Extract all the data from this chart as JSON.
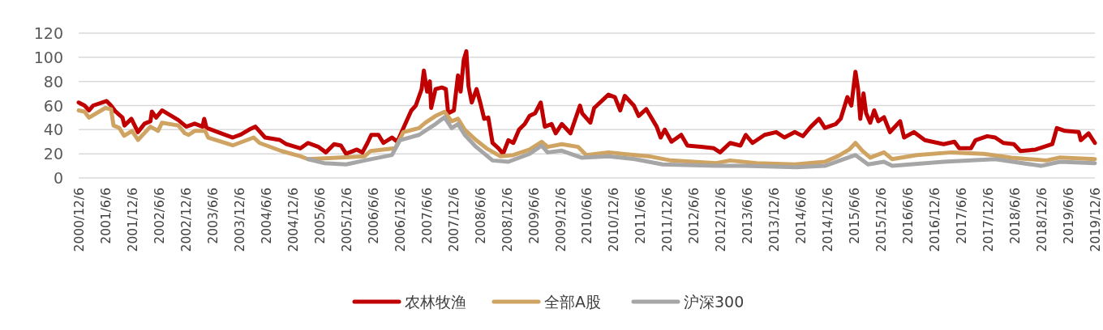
{
  "chart_data": {
    "type": "line",
    "grid": "y",
    "legend": "bottom",
    "ylim": [
      0,
      120
    ],
    "yticks": [
      0,
      20,
      40,
      60,
      80,
      100,
      120
    ],
    "xlim": [
      "2000-12-06",
      "2019-12-06"
    ],
    "xticks": [
      {
        "value": "2000-12-06",
        "label": "2000/12/6"
      },
      {
        "value": "2001-06-06",
        "label": "2001/6/6"
      },
      {
        "value": "2001-12-06",
        "label": "2001/12/6"
      },
      {
        "value": "2002-06-06",
        "label": "2002/6/6"
      },
      {
        "value": "2002-12-06",
        "label": "2002/12/6"
      },
      {
        "value": "2003-06-06",
        "label": "2003/6/6"
      },
      {
        "value": "2003-12-06",
        "label": "2003/12/6"
      },
      {
        "value": "2004-06-06",
        "label": "2004/6/6"
      },
      {
        "value": "2004-12-06",
        "label": "2004/12/6"
      },
      {
        "value": "2005-06-06",
        "label": "2005/6/6"
      },
      {
        "value": "2005-12-06",
        "label": "2005/12/6"
      },
      {
        "value": "2006-06-06",
        "label": "2006/6/6"
      },
      {
        "value": "2006-12-06",
        "label": "2006/12/6"
      },
      {
        "value": "2007-06-06",
        "label": "2007/6/6"
      },
      {
        "value": "2007-12-06",
        "label": "2007/12/6"
      },
      {
        "value": "2008-06-06",
        "label": "2008/6/6"
      },
      {
        "value": "2008-12-06",
        "label": "2008/12/6"
      },
      {
        "value": "2009-06-06",
        "label": "2009/6/6"
      },
      {
        "value": "2009-12-06",
        "label": "2009/12/6"
      },
      {
        "value": "2010-06-06",
        "label": "2010/6/6"
      },
      {
        "value": "2010-12-06",
        "label": "2010/12/6"
      },
      {
        "value": "2011-06-06",
        "label": "2011/6/6"
      },
      {
        "value": "2011-12-06",
        "label": "2011/12/6"
      },
      {
        "value": "2012-06-06",
        "label": "2012/6/6"
      },
      {
        "value": "2012-12-06",
        "label": "2012/12/6"
      },
      {
        "value": "2013-06-06",
        "label": "2013/6/6"
      },
      {
        "value": "2013-12-06",
        "label": "2013/12/6"
      },
      {
        "value": "2014-06-06",
        "label": "2014/6/6"
      },
      {
        "value": "2014-12-06",
        "label": "2014/12/6"
      },
      {
        "value": "2015-06-06",
        "label": "2015/6/6"
      },
      {
        "value": "2015-12-06",
        "label": "2015/12/6"
      },
      {
        "value": "2016-06-06",
        "label": "2016/6/6"
      },
      {
        "value": "2016-12-06",
        "label": "2016/12/6"
      },
      {
        "value": "2017-06-06",
        "label": "2017/6/6"
      },
      {
        "value": "2017-12-06",
        "label": "2017/12/6"
      },
      {
        "value": "2018-06-06",
        "label": "2018/6/6"
      },
      {
        "value": "2018-12-06",
        "label": "2018/12/6"
      },
      {
        "value": "2019-06-06",
        "label": "2019/6/6"
      },
      {
        "value": "2019-12-06",
        "label": "2019/12/6"
      }
    ],
    "series": [
      {
        "name": "农林牧渔",
        "color": "#c00000",
        "x": [
          "2000-12-06",
          "2001-01-15",
          "2001-02-15",
          "2001-03-15",
          "2001-06-15",
          "2001-07-15",
          "2001-08-15",
          "2001-10-01",
          "2001-10-15",
          "2001-12-01",
          "2002-01-15",
          "2002-03-01",
          "2002-04-10",
          "2002-04-20",
          "2002-05-19",
          "2002-06-28",
          "2002-10-17",
          "2002-12-11",
          "2003-02-06",
          "2003-04-01",
          "2003-04-12",
          "2003-04-28",
          "2003-08-06",
          "2003-10-24",
          "2003-12-18",
          "2004-02-12",
          "2004-03-27",
          "2004-06-01",
          "2004-09-09",
          "2004-10-24",
          "2005-01-27",
          "2005-03-21",
          "2005-06-01",
          "2005-07-21",
          "2005-09-15",
          "2005-11-01",
          "2005-12-06",
          "2006-02-18",
          "2006-03-27",
          "2006-05-01",
          "2006-05-27",
          "2006-07-15",
          "2006-08-18",
          "2006-10-15",
          "2006-11-21",
          "2007-01-06",
          "2007-02-24",
          "2007-03-27",
          "2007-05-06",
          "2007-05-21",
          "2007-06-12",
          "2007-07-01",
          "2007-07-10",
          "2007-08-09",
          "2007-09-21",
          "2007-10-18",
          "2007-11-03",
          "2007-12-12",
          "2008-01-09",
          "2008-01-27",
          "2008-02-18",
          "2008-03-06",
          "2008-03-21",
          "2008-04-12",
          "2008-05-15",
          "2008-06-09",
          "2008-07-06",
          "2008-08-03",
          "2008-09-01",
          "2008-10-12",
          "2008-11-12",
          "2008-12-18",
          "2009-01-21",
          "2009-03-01",
          "2009-04-09",
          "2009-05-12",
          "2009-06-18",
          "2009-07-27",
          "2009-08-24",
          "2009-10-09",
          "2009-11-06",
          "2009-12-18",
          "2010-02-15",
          "2010-04-21",
          "2010-05-06",
          "2010-07-01",
          "2010-07-27",
          "2010-11-01",
          "2010-12-15",
          "2011-01-21",
          "2011-02-21",
          "2011-04-24",
          "2011-05-27",
          "2011-07-18",
          "2011-09-27",
          "2011-10-24",
          "2011-11-21",
          "2012-01-06",
          "2012-03-12",
          "2012-04-24",
          "2012-08-09",
          "2012-10-21",
          "2012-12-03",
          "2013-02-09",
          "2013-04-21",
          "2013-05-27",
          "2013-07-12",
          "2013-10-03",
          "2013-12-21",
          "2014-02-15",
          "2014-04-27",
          "2014-06-21",
          "2014-08-15",
          "2014-10-09",
          "2014-11-18",
          "2015-02-01",
          "2015-03-06",
          "2015-04-21",
          "2015-05-18",
          "2015-06-15",
          "2015-07-03",
          "2015-07-18",
          "2015-08-09",
          "2015-08-27",
          "2015-09-24",
          "2015-10-21",
          "2015-11-18",
          "2015-12-27",
          "2016-02-06",
          "2016-04-15",
          "2016-05-12",
          "2016-07-18",
          "2016-10-01",
          "2017-02-06",
          "2017-04-21",
          "2017-05-24",
          "2017-08-12",
          "2017-09-12",
          "2017-12-01",
          "2018-01-24",
          "2018-03-21",
          "2018-06-01",
          "2018-07-15",
          "2018-10-27",
          "2019-02-18",
          "2019-03-21",
          "2019-05-15",
          "2019-08-18",
          "2019-09-01",
          "2019-10-24",
          "2019-12-06"
        ],
        "values": [
          62.5,
          60,
          56,
          60,
          63.7,
          60,
          55,
          50,
          43.5,
          49,
          38,
          45,
          47,
          55,
          50,
          56,
          48,
          42.5,
          45,
          42.5,
          49,
          41.5,
          37,
          33.5,
          36,
          40,
          42.5,
          33.5,
          31.5,
          28,
          24.5,
          29,
          25.7,
          21.2,
          28,
          26.8,
          20,
          23.5,
          21,
          29,
          35.7,
          35.7,
          29,
          33.5,
          30,
          42.5,
          55.8,
          60,
          73.7,
          89,
          71.5,
          80,
          58,
          73.7,
          75,
          73.7,
          53.6,
          56,
          85,
          71.5,
          98.3,
          105,
          76,
          62.5,
          73.7,
          62.5,
          49,
          50,
          29,
          24.6,
          20,
          31.3,
          29,
          40,
          44.7,
          51.4,
          53.6,
          62.5,
          42.5,
          44.7,
          37,
          44.7,
          37,
          60,
          53.6,
          45.8,
          58,
          69,
          67,
          56,
          68,
          60,
          51.4,
          57,
          42.5,
          33.5,
          40,
          30,
          35.7,
          26.8,
          25.7,
          24.6,
          21.2,
          29,
          26.8,
          35.7,
          29,
          35.7,
          38,
          33.5,
          38,
          34.6,
          42.5,
          49,
          41.5,
          44.7,
          49,
          67,
          60,
          88,
          73.7,
          49,
          70,
          53.6,
          45.8,
          56,
          47,
          50.3,
          38,
          47,
          33.5,
          38,
          31.3,
          28,
          30,
          24.6,
          24.6,
          31.3,
          34.6,
          33.5,
          29,
          28,
          22.3,
          23.5,
          28,
          41.3,
          39,
          38,
          31.3,
          37,
          29
        ]
      },
      {
        "name": "全部A股",
        "color": "#cfa463",
        "x": [
          "2000-12-06",
          "2001-01-15",
          "2001-02-15",
          "2001-06-06",
          "2001-07-15",
          "2001-08-01",
          "2001-09-09",
          "2001-10-12",
          "2001-12-06",
          "2002-01-15",
          "2002-04-10",
          "2002-06-01",
          "2002-06-28",
          "2002-10-17",
          "2002-12-01",
          "2002-12-27",
          "2003-02-06",
          "2003-04-18",
          "2003-05-09",
          "2003-10-24",
          "2004-03-15",
          "2004-04-24",
          "2004-09-21",
          "2005-01-27",
          "2005-03-21",
          "2005-11-01",
          "2006-04-12",
          "2006-05-21",
          "2006-11-06",
          "2007-01-01",
          "2007-04-18",
          "2007-06-01",
          "2007-08-09",
          "2007-10-09",
          "2007-11-27",
          "2008-01-09",
          "2008-02-24",
          "2008-05-12",
          "2008-07-21",
          "2008-10-24",
          "2009-01-21",
          "2009-05-12",
          "2009-08-03",
          "2009-09-12",
          "2009-12-18",
          "2010-04-09",
          "2010-06-03",
          "2010-11-01",
          "2011-02-03",
          "2011-08-03",
          "2012-01-01",
          "2012-11-06",
          "2013-02-09",
          "2013-08-09",
          "2014-04-27",
          "2014-11-18",
          "2015-02-15",
          "2015-05-03",
          "2015-06-15",
          "2015-08-01",
          "2015-09-24",
          "2015-12-27",
          "2016-02-21",
          "2016-08-06",
          "2017-04-01",
          "2017-11-09",
          "2018-05-15",
          "2019-01-09",
          "2019-04-12",
          "2019-12-06"
        ],
        "values": [
          56,
          55,
          50,
          58,
          57,
          43.5,
          41.5,
          35,
          39,
          31.5,
          42.5,
          39,
          45.8,
          43.5,
          37,
          35.7,
          39,
          39,
          33.5,
          27,
          33.5,
          29,
          22.3,
          18,
          15.6,
          17,
          18,
          22.3,
          24.6,
          38,
          41.3,
          45.8,
          51.4,
          54.8,
          47,
          49,
          40,
          31.3,
          24.6,
          18,
          19,
          23.5,
          30,
          25.7,
          28,
          25.7,
          19,
          21.2,
          20,
          18,
          14.5,
          12.3,
          14.5,
          12.3,
          11.2,
          13.4,
          18,
          23.5,
          29,
          22.6,
          16.8,
          21.2,
          15.6,
          19,
          21.2,
          20,
          16.8,
          14.5,
          17,
          15.6
        ]
      },
      {
        "name": "沪深300",
        "color": "#a6a6a6",
        "x": [
          "2005-03-21",
          "2005-07-09",
          "2005-12-06",
          "2006-04-12",
          "2006-10-15",
          "2006-12-09",
          "2007-04-18",
          "2007-08-09",
          "2007-10-09",
          "2007-11-27",
          "2008-01-09",
          "2008-02-24",
          "2008-05-12",
          "2008-09-01",
          "2008-12-18",
          "2009-05-12",
          "2009-08-03",
          "2009-09-12",
          "2009-12-18",
          "2010-05-01",
          "2010-11-01",
          "2011-05-01",
          "2011-11-06",
          "2012-11-06",
          "2013-05-12",
          "2014-05-12",
          "2014-11-18",
          "2015-06-15",
          "2015-09-09",
          "2015-12-27",
          "2016-02-21",
          "2017-02-06",
          "2018-01-24",
          "2018-12-03",
          "2019-04-12",
          "2019-12-06"
        ],
        "values": [
          15.6,
          12.3,
          11.2,
          14.5,
          19,
          31.3,
          35.7,
          44.7,
          50.3,
          41.3,
          44.7,
          35.7,
          25.7,
          14.5,
          13.4,
          20,
          26.8,
          21.2,
          22.6,
          16.8,
          18,
          15.6,
          11.2,
          10,
          10,
          8.9,
          10,
          19,
          11.2,
          13.4,
          10,
          13.4,
          15.6,
          10,
          13.4,
          12.3
        ]
      }
    ]
  }
}
